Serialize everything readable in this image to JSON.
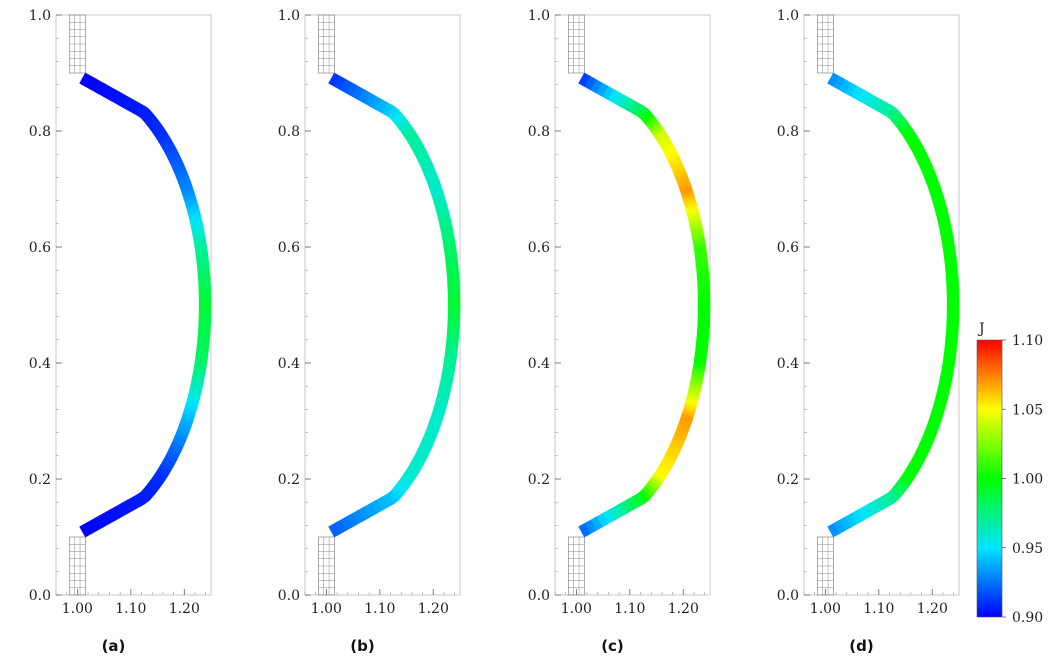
{
  "chart_data": [
    {
      "type": "heatmap",
      "panel_label": "(a)",
      "xlim": [
        0.96,
        1.25
      ],
      "ylim": [
        0.0,
        1.0
      ],
      "x_ticks": [
        "1.00",
        "1.10",
        "1.20"
      ],
      "y_ticks": [
        "0.0",
        "0.2",
        "0.4",
        "0.6",
        "0.8",
        "1.0"
      ],
      "field_profile": [
        {
          "y": 0.1,
          "J": 0.9
        },
        {
          "y": 0.2,
          "J": 0.91
        },
        {
          "y": 0.3,
          "J": 0.94
        },
        {
          "y": 0.4,
          "J": 0.98
        },
        {
          "y": 0.5,
          "J": 0.99
        },
        {
          "y": 0.6,
          "J": 0.97
        },
        {
          "y": 0.7,
          "J": 0.93
        },
        {
          "y": 0.8,
          "J": 0.91
        },
        {
          "y": 0.9,
          "J": 0.9
        }
      ]
    },
    {
      "type": "heatmap",
      "panel_label": "(b)",
      "xlim": [
        0.96,
        1.25
      ],
      "ylim": [
        0.0,
        1.0
      ],
      "x_ticks": [
        "1.00",
        "1.10",
        "1.20"
      ],
      "y_ticks": [
        "0.0",
        "0.2",
        "0.4",
        "0.6",
        "0.8",
        "1.0"
      ],
      "field_profile": [
        {
          "y": 0.1,
          "J": 0.92
        },
        {
          "y": 0.2,
          "J": 0.96
        },
        {
          "y": 0.3,
          "J": 0.96
        },
        {
          "y": 0.4,
          "J": 0.97
        },
        {
          "y": 0.5,
          "J": 0.99
        },
        {
          "y": 0.6,
          "J": 0.98
        },
        {
          "y": 0.7,
          "J": 0.96
        },
        {
          "y": 0.8,
          "J": 0.97
        },
        {
          "y": 0.9,
          "J": 0.91
        }
      ]
    },
    {
      "type": "heatmap",
      "panel_label": "(c)",
      "xlim": [
        0.96,
        1.25
      ],
      "ylim": [
        0.0,
        1.0
      ],
      "x_ticks": [
        "1.00",
        "1.10",
        "1.20"
      ],
      "y_ticks": [
        "0.0",
        "0.2",
        "0.4",
        "0.6",
        "0.8",
        "1.0"
      ],
      "field_profile": [
        {
          "y": 0.1,
          "J": 0.92
        },
        {
          "y": 0.2,
          "J": 1.05
        },
        {
          "y": 0.3,
          "J": 1.07
        },
        {
          "y": 0.4,
          "J": 1.0
        },
        {
          "y": 0.5,
          "J": 1.0
        },
        {
          "y": 0.6,
          "J": 1.01
        },
        {
          "y": 0.7,
          "J": 1.07
        },
        {
          "y": 0.8,
          "J": 1.04
        },
        {
          "y": 0.9,
          "J": 0.91
        }
      ]
    },
    {
      "type": "heatmap",
      "panel_label": "(d)",
      "xlim": [
        0.96,
        1.25
      ],
      "ylim": [
        0.0,
        1.0
      ],
      "x_ticks": [
        "1.00",
        "1.10",
        "1.20"
      ],
      "y_ticks": [
        "0.0",
        "0.2",
        "0.4",
        "0.6",
        "0.8",
        "1.0"
      ],
      "field_profile": [
        {
          "y": 0.1,
          "J": 0.93
        },
        {
          "y": 0.2,
          "J": 1.0
        },
        {
          "y": 0.3,
          "J": 1.0
        },
        {
          "y": 0.4,
          "J": 1.0
        },
        {
          "y": 0.5,
          "J": 1.0
        },
        {
          "y": 0.6,
          "J": 1.0
        },
        {
          "y": 0.7,
          "J": 1.0
        },
        {
          "y": 0.8,
          "J": 1.0
        },
        {
          "y": 0.9,
          "J": 0.93
        }
      ]
    }
  ],
  "colorbar": {
    "title": "J",
    "min": 0.9,
    "max": 1.1,
    "tick_labels": [
      "1.10",
      "1.05",
      "1.00",
      "0.95",
      "0.90"
    ],
    "colormap": [
      "#0000ff",
      "#00e5ff",
      "#00ff00",
      "#ffff00",
      "#ff0000"
    ]
  }
}
